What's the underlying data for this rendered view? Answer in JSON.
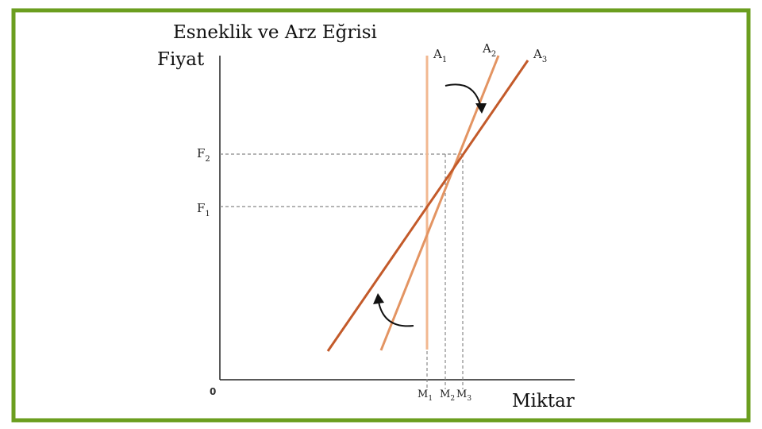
{
  "title": "Esneklik ve Arz Eğrisi",
  "y_axis_label": "Fiyat",
  "x_axis_label": "Miktar",
  "origin_label": "0",
  "curves": [
    {
      "letter": "A",
      "sub": "1"
    },
    {
      "letter": "A",
      "sub": "2"
    },
    {
      "letter": "A",
      "sub": "3"
    }
  ],
  "price_levels": [
    {
      "letter": "F",
      "sub": "1"
    },
    {
      "letter": "F",
      "sub": "2"
    }
  ],
  "quantity_levels": [
    {
      "letter": "M",
      "sub": "1"
    },
    {
      "letter": "M",
      "sub": "2"
    },
    {
      "letter": "M",
      "sub": "3"
    }
  ]
}
